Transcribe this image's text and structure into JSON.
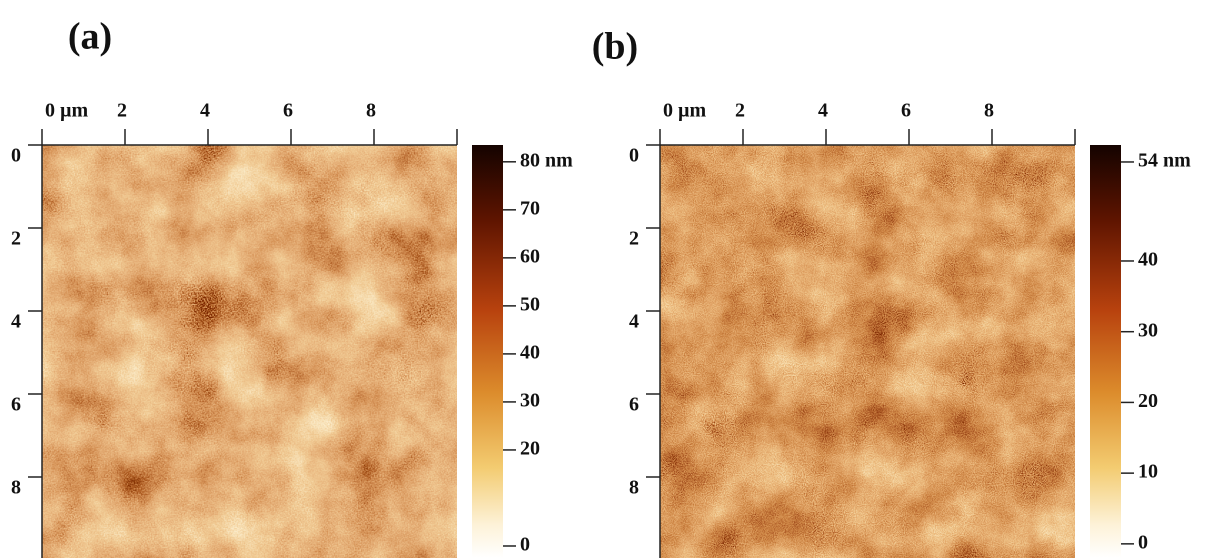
{
  "chart_data": [
    {
      "type": "image",
      "panel_label": "(a)",
      "xlim": [
        0,
        10
      ],
      "xticks": [
        {
          "value": 0,
          "label": "0 µm"
        },
        2,
        4,
        6,
        8
      ],
      "ylim": [
        0,
        10
      ],
      "yticks": [
        0,
        2,
        4,
        6,
        8
      ],
      "colorbar": {
        "clim": [
          -2.5,
          83.5
        ],
        "ticks": [
          {
            "value": 80,
            "label": "80 nm"
          },
          70,
          60,
          50,
          40,
          30,
          20,
          0
        ]
      }
    },
    {
      "type": "image",
      "panel_label": "(b)",
      "xlim": [
        0,
        10
      ],
      "xticks": [
        {
          "value": 0,
          "label": "0 µm"
        },
        2,
        4,
        6,
        8
      ],
      "ylim": [
        0,
        10
      ],
      "yticks": [
        0,
        2,
        4,
        6,
        8
      ],
      "colorbar": {
        "clim": [
          -2,
          56.4
        ],
        "ticks": [
          {
            "value": 54,
            "label": "54 nm"
          },
          40,
          30,
          20,
          10,
          0
        ]
      }
    }
  ]
}
